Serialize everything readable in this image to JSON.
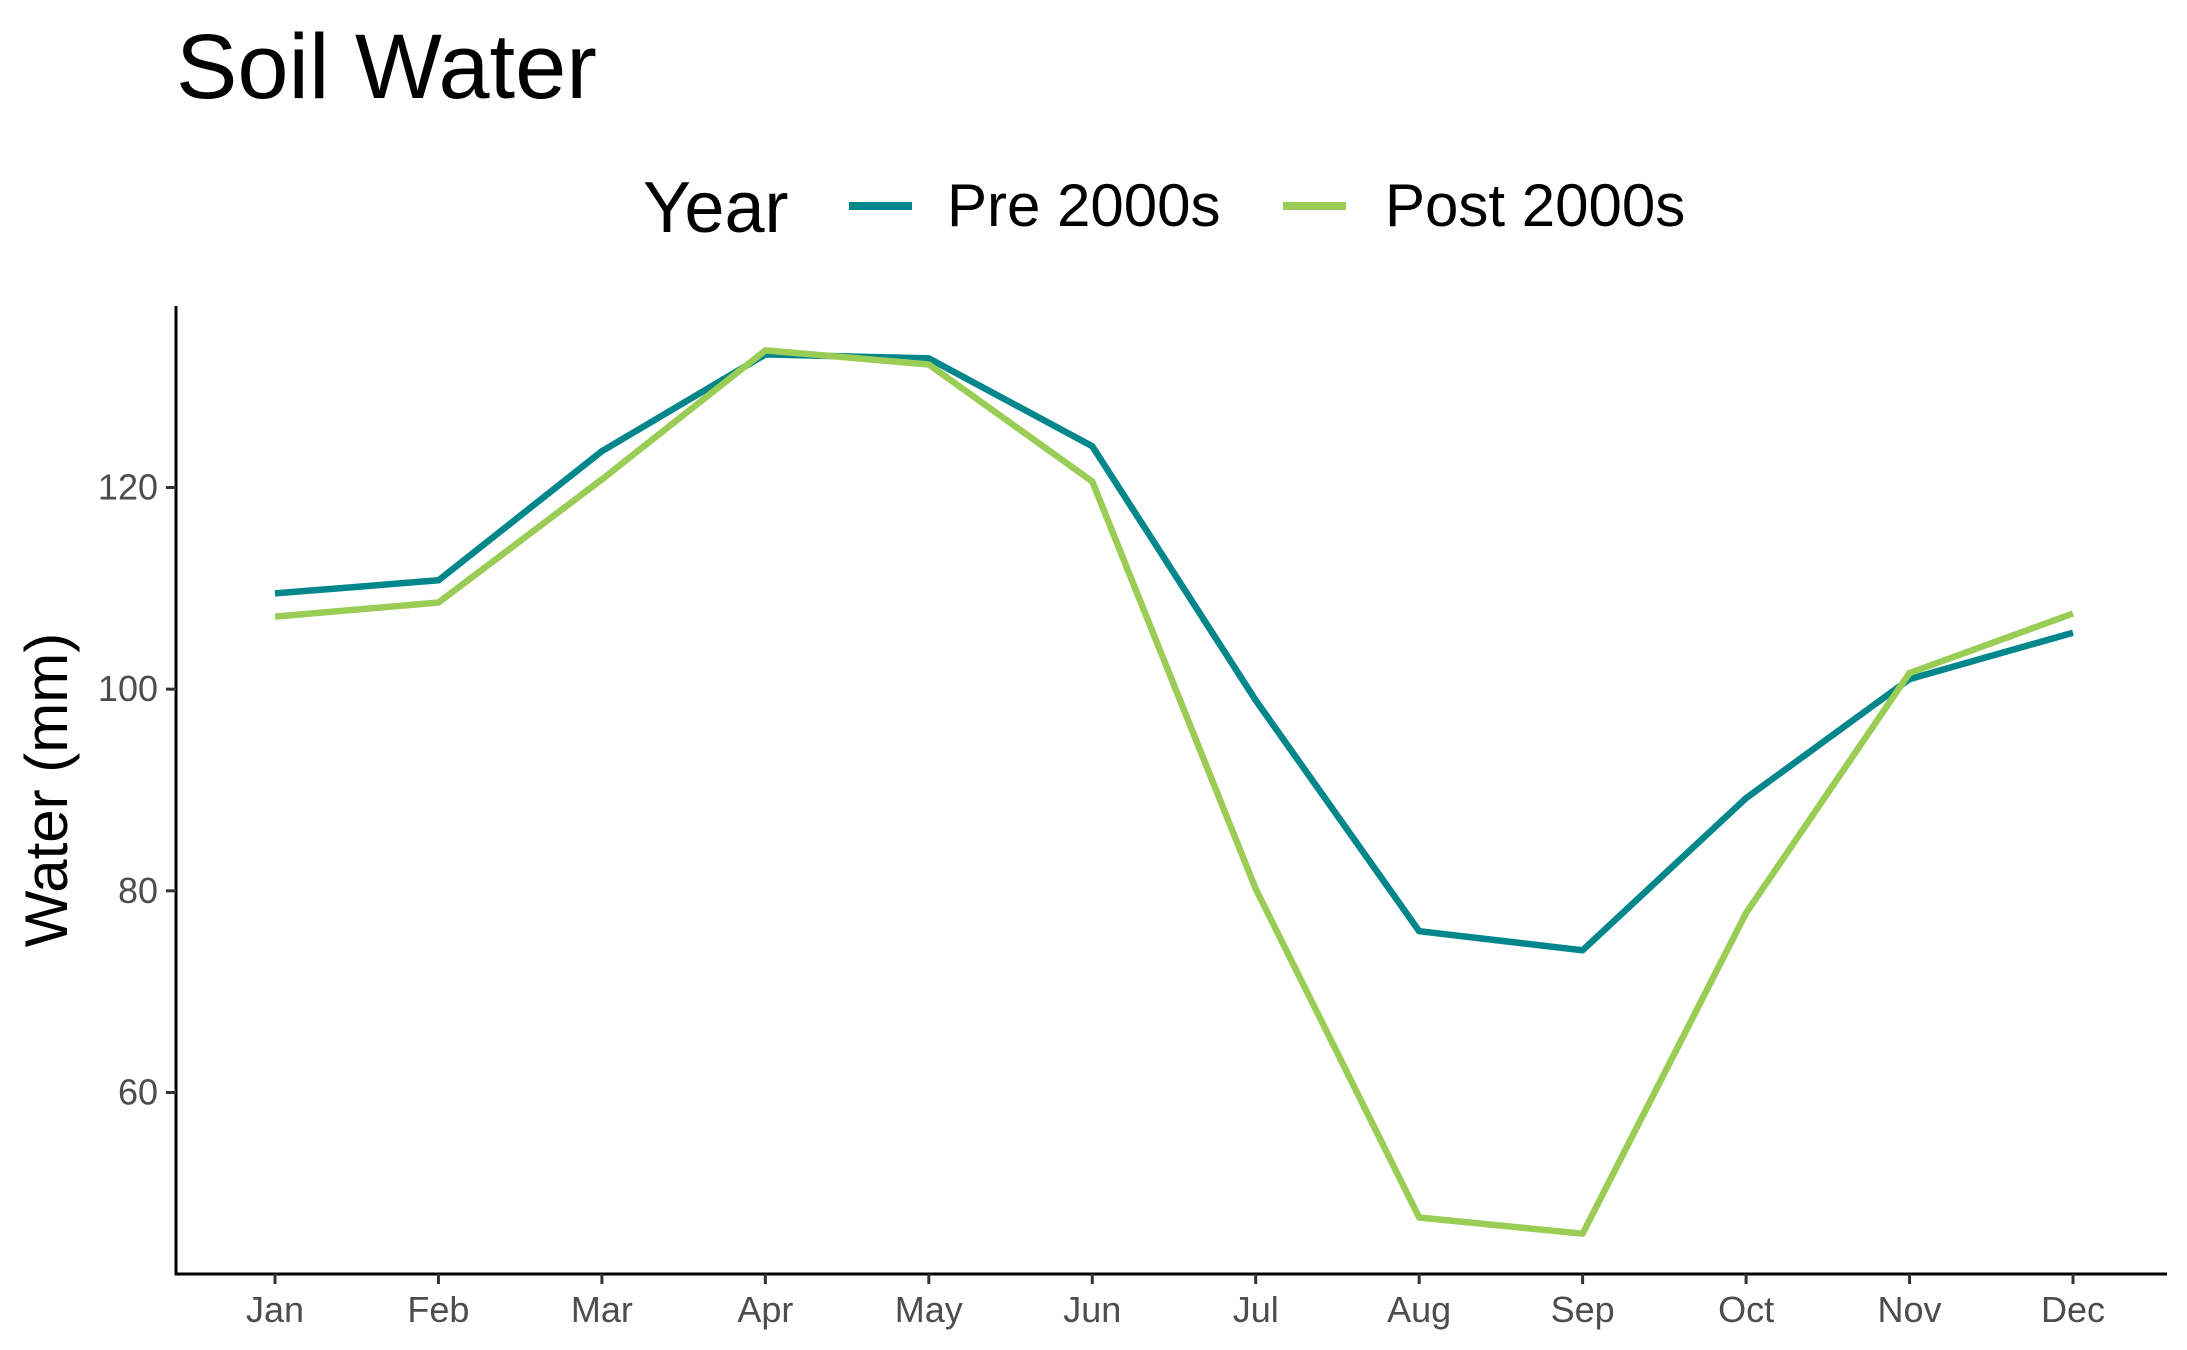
{
  "chart_data": {
    "type": "line",
    "title": "Soil Water",
    "xlabel": "",
    "ylabel": "Water (mm)",
    "categories": [
      "Jan",
      "Feb",
      "Mar",
      "Apr",
      "May",
      "Jun",
      "Jul",
      "Aug",
      "Sep",
      "Oct",
      "Nov",
      "Dec"
    ],
    "yticks": [
      60,
      80,
      100,
      120
    ],
    "ylim": [
      42,
      138
    ],
    "grid": false,
    "legend": {
      "title": "Year",
      "position": "top"
    },
    "series": [
      {
        "name": "Pre 2000s",
        "color": "#00868B",
        "values": [
          109.5,
          110.8,
          123.6,
          133.2,
          132.8,
          124.1,
          98.9,
          76.0,
          74.1,
          89.2,
          101.0,
          105.6
        ]
      },
      {
        "name": "Post 2000s",
        "color": "#9ACD56",
        "values": [
          107.2,
          108.6,
          120.8,
          133.6,
          132.2,
          120.6,
          80.2,
          47.6,
          46.0,
          77.8,
          101.6,
          107.5
        ]
      }
    ]
  }
}
